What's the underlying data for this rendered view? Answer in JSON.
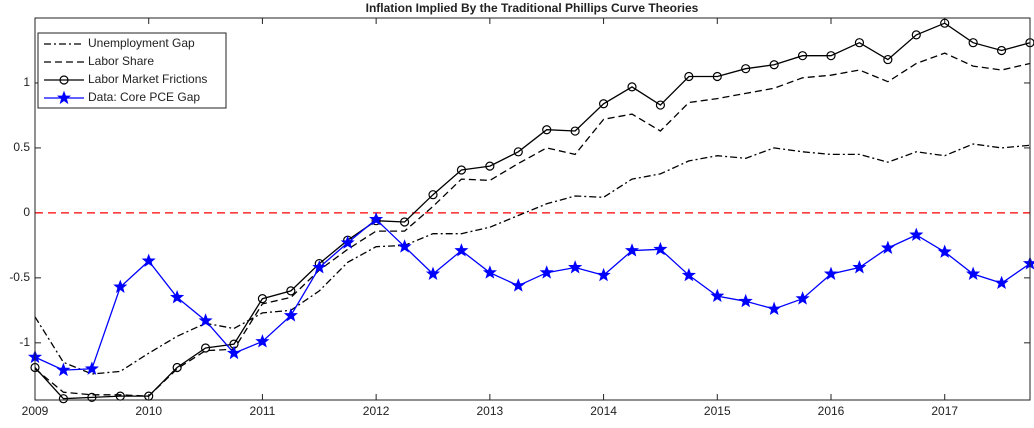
{
  "chart_data": {
    "type": "line",
    "title": "Inflation Implied By the Traditional Phillips Curve Theories",
    "x": [
      2009,
      2009.25,
      2009.5,
      2009.75,
      2010,
      2010.25,
      2010.5,
      2010.75,
      2011,
      2011.25,
      2011.5,
      2011.75,
      2012,
      2012.25,
      2012.5,
      2012.75,
      2013,
      2013.25,
      2013.5,
      2013.75,
      2014,
      2014.25,
      2014.5,
      2014.75,
      2015,
      2015.25,
      2015.5,
      2015.75,
      2016,
      2016.25,
      2016.5,
      2016.75,
      2017,
      2017.25,
      2017.5,
      2017.75
    ],
    "series": [
      {
        "name": "Unemployment Gap",
        "color": "#000000",
        "dash": "7 3 2 3",
        "marker": "none",
        "values": [
          -0.8,
          -1.15,
          -1.24,
          -1.22,
          -1.08,
          -0.95,
          -0.85,
          -0.89,
          -0.77,
          -0.75,
          -0.6,
          -0.38,
          -0.26,
          -0.25,
          -0.16,
          -0.16,
          -0.11,
          -0.02,
          0.07,
          0.13,
          0.12,
          0.26,
          0.3,
          0.4,
          0.44,
          0.42,
          0.5,
          0.47,
          0.45,
          0.45,
          0.39,
          0.47,
          0.44,
          0.53,
          0.5,
          0.52
        ]
      },
      {
        "name": "Labor Share",
        "color": "#000000",
        "dash": "7 4",
        "marker": "none",
        "values": [
          -1.2,
          -1.38,
          -1.4,
          -1.4,
          -1.41,
          -1.2,
          -1.06,
          -1.05,
          -0.7,
          -0.65,
          -0.44,
          -0.28,
          -0.14,
          -0.14,
          0.05,
          0.26,
          0.25,
          0.38,
          0.5,
          0.45,
          0.72,
          0.76,
          0.63,
          0.85,
          0.88,
          0.92,
          0.96,
          1.04,
          1.06,
          1.1,
          1.01,
          1.15,
          1.23,
          1.13,
          1.1,
          1.15
        ]
      },
      {
        "name": "Labor Market Frictions",
        "color": "#000000",
        "dash": "none",
        "marker": "circle",
        "values": [
          -1.19,
          -1.43,
          -1.42,
          -1.41,
          -1.41,
          -1.19,
          -1.04,
          -1.01,
          -0.66,
          -0.6,
          -0.39,
          -0.21,
          -0.06,
          -0.07,
          0.14,
          0.33,
          0.36,
          0.47,
          0.64,
          0.63,
          0.84,
          0.97,
          0.83,
          1.05,
          1.05,
          1.11,
          1.14,
          1.21,
          1.21,
          1.31,
          1.18,
          1.37,
          1.46,
          1.31,
          1.25,
          1.31
        ]
      },
      {
        "name": "Data: Core PCE Gap",
        "color": "#0000ff",
        "dash": "none",
        "marker": "star",
        "values": [
          -1.11,
          -1.21,
          -1.2,
          -0.57,
          -0.37,
          -0.65,
          -0.83,
          -1.08,
          -0.99,
          -0.79,
          -0.42,
          -0.23,
          -0.05,
          -0.26,
          -0.47,
          -0.29,
          -0.46,
          -0.56,
          -0.46,
          -0.42,
          -0.48,
          -0.29,
          -0.28,
          -0.48,
          -0.64,
          -0.68,
          -0.74,
          -0.66,
          -0.47,
          -0.42,
          -0.27,
          -0.17,
          -0.3,
          -0.47,
          -0.54,
          -0.39
        ]
      }
    ],
    "reference_line": {
      "value": 0,
      "color": "#ff0000"
    },
    "xlim": [
      2009,
      2017.75
    ],
    "xticks": [
      2009,
      2010,
      2011,
      2012,
      2013,
      2014,
      2015,
      2016,
      2017
    ],
    "ylim": [
      -1.44,
      1.5
    ],
    "yticks": [
      -1,
      -0.5,
      0,
      0.5,
      1
    ],
    "legend": "upper-left",
    "grid": false
  }
}
